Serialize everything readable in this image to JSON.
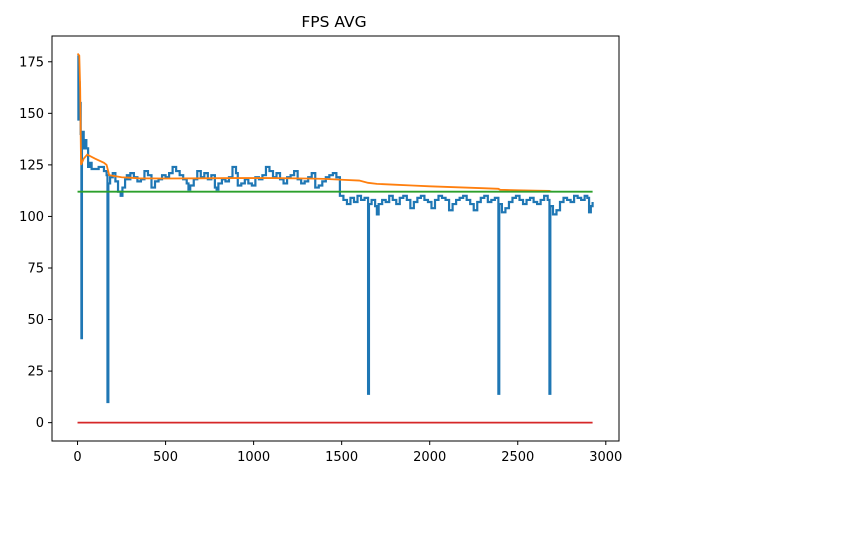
{
  "chart_data": {
    "type": "line",
    "title": "FPS AVG",
    "xlabel": "",
    "ylabel": "",
    "xlim": [
      -145,
      3075
    ],
    "ylim": [
      -8.9,
      187.5
    ],
    "xticks": [
      0,
      500,
      1000,
      1500,
      2000,
      2500,
      3000
    ],
    "yticks": [
      0,
      25,
      50,
      75,
      100,
      125,
      150,
      175
    ],
    "grid": false,
    "legend": "none",
    "series": [
      {
        "color": "#1f77b4",
        "style": "step",
        "points": [
          [
            0,
            178
          ],
          [
            5,
            147
          ],
          [
            8,
            165
          ],
          [
            12,
            155
          ],
          [
            18,
            140
          ],
          [
            22,
            41
          ],
          [
            25,
            138
          ],
          [
            30,
            141
          ],
          [
            35,
            133
          ],
          [
            40,
            137
          ],
          [
            50,
            133
          ],
          [
            60,
            124
          ],
          [
            70,
            126
          ],
          [
            80,
            123
          ],
          [
            100,
            123
          ],
          [
            120,
            124
          ],
          [
            150,
            122
          ],
          [
            165,
            120
          ],
          [
            170,
            10
          ],
          [
            175,
            116
          ],
          [
            185,
            119
          ],
          [
            200,
            121
          ],
          [
            215,
            117
          ],
          [
            230,
            112
          ],
          [
            245,
            110
          ],
          [
            255,
            114
          ],
          [
            270,
            118
          ],
          [
            280,
            120
          ],
          [
            290,
            118
          ],
          [
            300,
            121
          ],
          [
            320,
            119
          ],
          [
            340,
            117
          ],
          [
            360,
            118
          ],
          [
            380,
            122
          ],
          [
            400,
            120
          ],
          [
            420,
            114
          ],
          [
            440,
            117
          ],
          [
            460,
            118
          ],
          [
            480,
            120
          ],
          [
            500,
            119
          ],
          [
            520,
            121
          ],
          [
            540,
            124
          ],
          [
            560,
            122
          ],
          [
            580,
            120
          ],
          [
            600,
            118
          ],
          [
            620,
            116
          ],
          [
            630,
            113
          ],
          [
            640,
            115
          ],
          [
            660,
            118
          ],
          [
            680,
            122
          ],
          [
            700,
            119
          ],
          [
            720,
            121
          ],
          [
            740,
            118
          ],
          [
            760,
            120
          ],
          [
            780,
            114
          ],
          [
            790,
            113
          ],
          [
            800,
            116
          ],
          [
            820,
            118
          ],
          [
            840,
            117
          ],
          [
            860,
            119
          ],
          [
            880,
            124
          ],
          [
            900,
            121
          ],
          [
            910,
            115
          ],
          [
            930,
            116
          ],
          [
            950,
            118
          ],
          [
            970,
            116
          ],
          [
            990,
            115
          ],
          [
            1010,
            119
          ],
          [
            1030,
            118
          ],
          [
            1050,
            120
          ],
          [
            1070,
            124
          ],
          [
            1090,
            122
          ],
          [
            1110,
            119
          ],
          [
            1130,
            121
          ],
          [
            1150,
            118
          ],
          [
            1170,
            116
          ],
          [
            1190,
            119
          ],
          [
            1210,
            120
          ],
          [
            1230,
            122
          ],
          [
            1250,
            118
          ],
          [
            1270,
            116
          ],
          [
            1290,
            117
          ],
          [
            1310,
            119
          ],
          [
            1330,
            121
          ],
          [
            1350,
            114
          ],
          [
            1370,
            115
          ],
          [
            1390,
            117
          ],
          [
            1410,
            119
          ],
          [
            1430,
            120
          ],
          [
            1450,
            121
          ],
          [
            1470,
            119
          ],
          [
            1490,
            110
          ],
          [
            1510,
            108
          ],
          [
            1530,
            106
          ],
          [
            1550,
            109
          ],
          [
            1570,
            107
          ],
          [
            1590,
            110
          ],
          [
            1610,
            108
          ],
          [
            1630,
            109
          ],
          [
            1650,
            14
          ],
          [
            1655,
            106
          ],
          [
            1670,
            108
          ],
          [
            1690,
            105
          ],
          [
            1700,
            101
          ],
          [
            1710,
            106
          ],
          [
            1730,
            108
          ],
          [
            1750,
            107
          ],
          [
            1770,
            110
          ],
          [
            1790,
            108
          ],
          [
            1810,
            106
          ],
          [
            1830,
            109
          ],
          [
            1850,
            110
          ],
          [
            1870,
            108
          ],
          [
            1890,
            104
          ],
          [
            1910,
            107
          ],
          [
            1930,
            109
          ],
          [
            1950,
            110
          ],
          [
            1970,
            108
          ],
          [
            1990,
            107
          ],
          [
            2010,
            104
          ],
          [
            2030,
            108
          ],
          [
            2050,
            110
          ],
          [
            2070,
            109
          ],
          [
            2090,
            108
          ],
          [
            2110,
            103
          ],
          [
            2130,
            106
          ],
          [
            2150,
            108
          ],
          [
            2170,
            109
          ],
          [
            2190,
            110
          ],
          [
            2210,
            108
          ],
          [
            2230,
            106
          ],
          [
            2250,
            103
          ],
          [
            2270,
            107
          ],
          [
            2290,
            109
          ],
          [
            2310,
            110
          ],
          [
            2330,
            107
          ],
          [
            2350,
            108
          ],
          [
            2370,
            109
          ],
          [
            2390,
            14
          ],
          [
            2395,
            106
          ],
          [
            2410,
            102
          ],
          [
            2430,
            104
          ],
          [
            2450,
            107
          ],
          [
            2470,
            109
          ],
          [
            2490,
            110
          ],
          [
            2510,
            108
          ],
          [
            2530,
            106
          ],
          [
            2550,
            108
          ],
          [
            2570,
            109
          ],
          [
            2590,
            107
          ],
          [
            2610,
            106
          ],
          [
            2630,
            108
          ],
          [
            2650,
            110
          ],
          [
            2670,
            108
          ],
          [
            2680,
            14
          ],
          [
            2685,
            105
          ],
          [
            2700,
            101
          ],
          [
            2720,
            103
          ],
          [
            2740,
            107
          ],
          [
            2760,
            109
          ],
          [
            2780,
            108
          ],
          [
            2800,
            107
          ],
          [
            2820,
            110
          ],
          [
            2840,
            109
          ],
          [
            2860,
            108
          ],
          [
            2880,
            110
          ],
          [
            2895,
            109
          ],
          [
            2905,
            102
          ],
          [
            2915,
            105
          ],
          [
            2925,
            107
          ]
        ]
      },
      {
        "color": "#ff7f0e",
        "style": "line",
        "points": [
          [
            0,
            179
          ],
          [
            10,
            178
          ],
          [
            15,
            162
          ],
          [
            20,
            125
          ],
          [
            35,
            128
          ],
          [
            55,
            130
          ],
          [
            100,
            128
          ],
          [
            150,
            126
          ],
          [
            165,
            125
          ],
          [
            180,
            120
          ],
          [
            250,
            119
          ],
          [
            350,
            118.5
          ],
          [
            500,
            118.4
          ],
          [
            700,
            118.5
          ],
          [
            900,
            118.6
          ],
          [
            1100,
            118.6
          ],
          [
            1300,
            118.4
          ],
          [
            1400,
            118.2
          ],
          [
            1500,
            117.8
          ],
          [
            1600,
            117.4
          ],
          [
            1650,
            116.3
          ],
          [
            1700,
            115.8
          ],
          [
            1800,
            115.4
          ],
          [
            1900,
            115
          ],
          [
            2000,
            114.6
          ],
          [
            2100,
            114.3
          ],
          [
            2200,
            114
          ],
          [
            2300,
            113.7
          ],
          [
            2390,
            113.4
          ],
          [
            2400,
            112.9
          ],
          [
            2500,
            112.7
          ],
          [
            2600,
            112.5
          ],
          [
            2680,
            112.4
          ],
          [
            2690,
            112
          ]
        ]
      },
      {
        "color": "#2ca02c",
        "style": "line",
        "points": [
          [
            0,
            112
          ],
          [
            2925,
            112
          ]
        ]
      },
      {
        "color": "#d62728",
        "style": "line",
        "points": [
          [
            0,
            0
          ],
          [
            2925,
            0
          ]
        ]
      }
    ]
  }
}
